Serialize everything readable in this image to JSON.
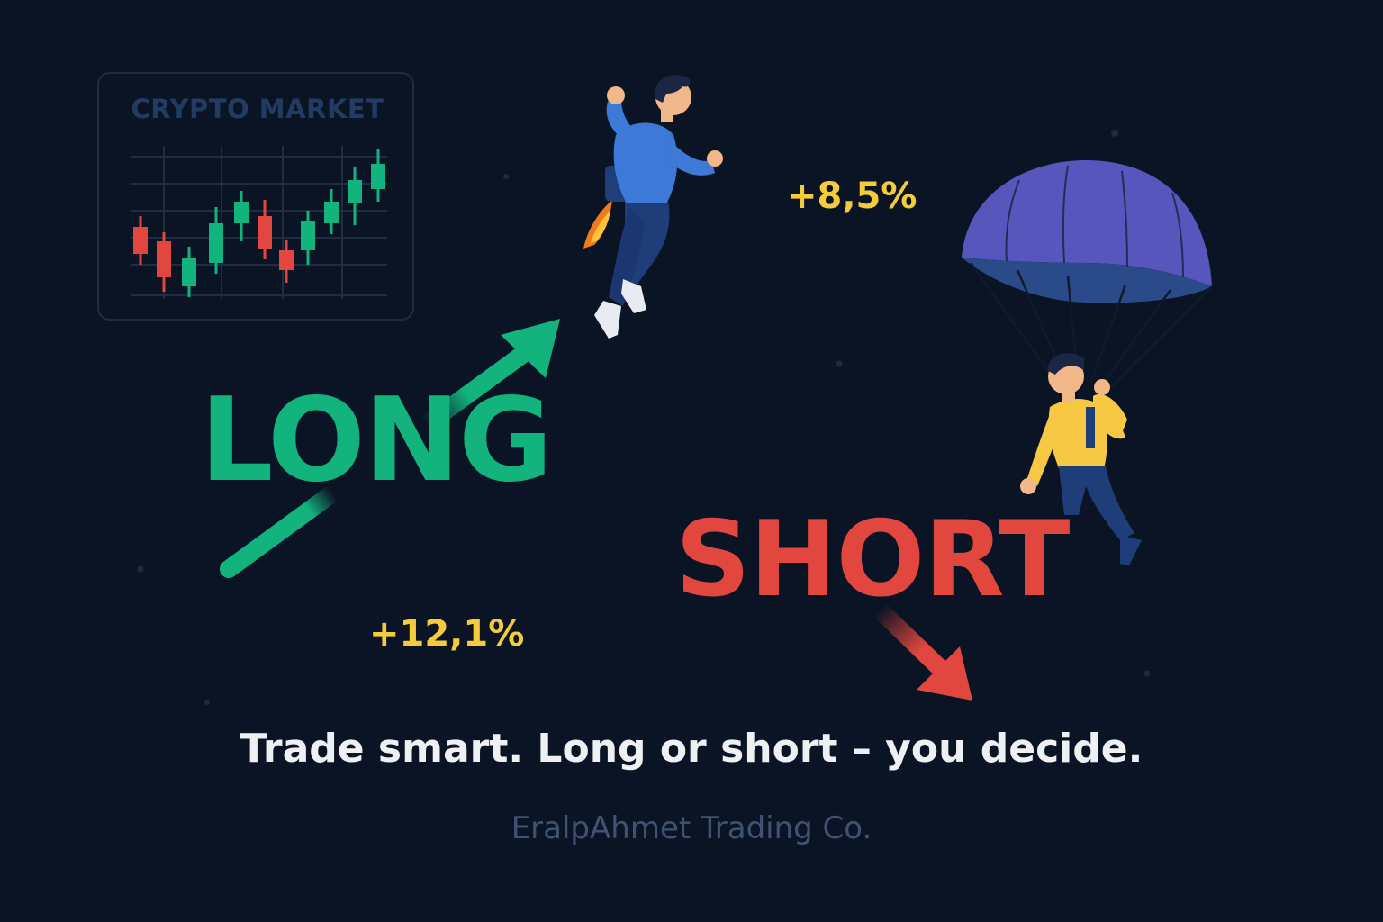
{
  "market_card": {
    "title": "CRYPTO MARKET"
  },
  "long": {
    "label": "LONG",
    "percent": "+12,1%",
    "color": "#12b37d"
  },
  "short": {
    "label": "SHORT",
    "percent": "+8,5%",
    "color": "#e2473f"
  },
  "tagline": "Trade smart. Long or short – you decide.",
  "company": "EralpAhmet  Trading Co.",
  "colors": {
    "background": "#0b1424",
    "percent_text": "#f3cb3c",
    "up_candle": "#12b37d",
    "down_candle": "#e2473f",
    "parachute": "#5756bd"
  }
}
